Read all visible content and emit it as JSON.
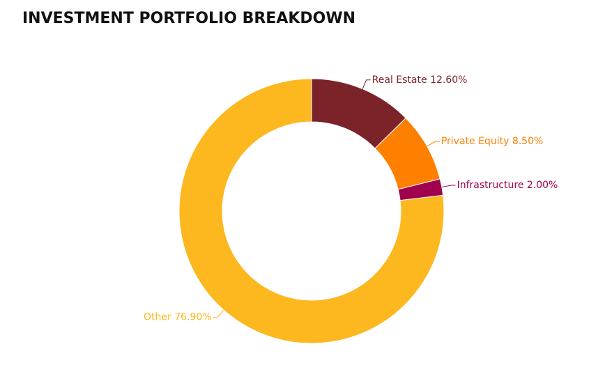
{
  "chart_data": {
    "type": "donut",
    "title": "INVESTMENT PORTFOLIO BREAKDOWN",
    "categories": [
      "Real Estate",
      "Private Equity",
      "Infrastructure",
      "Other"
    ],
    "values": [
      12.6,
      8.5,
      2.0,
      76.9
    ],
    "value_labels": [
      "12.60%",
      "8.50%",
      "2.00%",
      "76.90%"
    ],
    "colors": [
      "#7b2328",
      "#ff8000",
      "#a0004d",
      "#fdb71f"
    ]
  }
}
